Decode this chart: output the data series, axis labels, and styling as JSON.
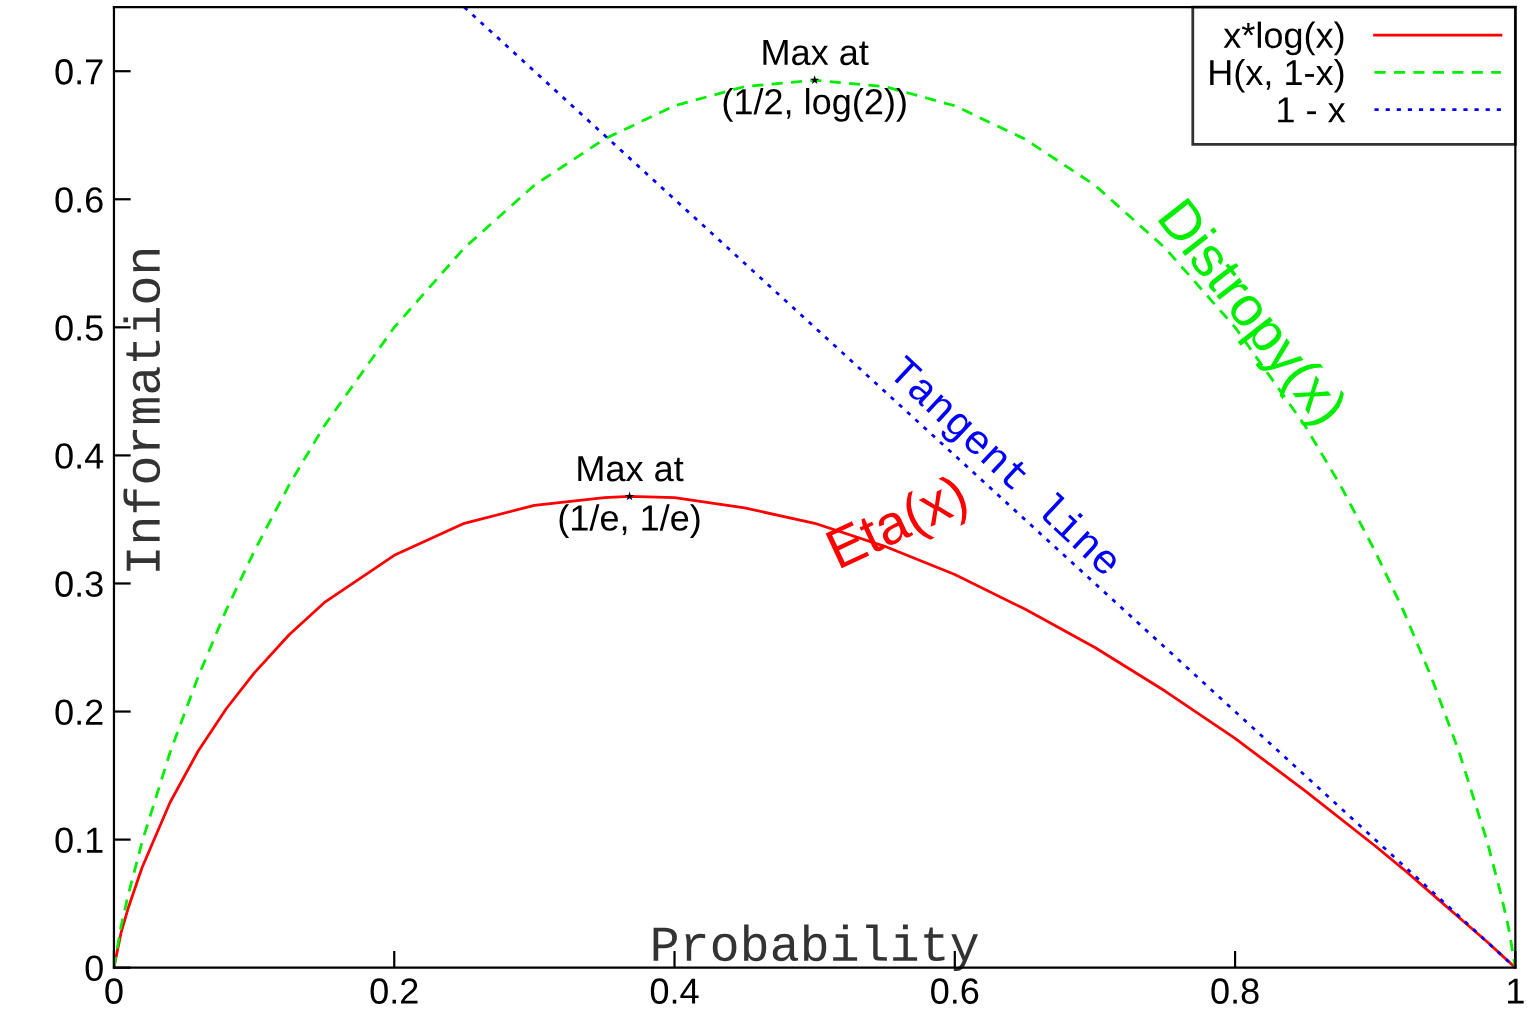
{
  "chart_data": {
    "type": "line",
    "xlabel": "Probability",
    "ylabel": "Information",
    "xlim": [
      0,
      1
    ],
    "ylim": [
      0,
      0.75
    ],
    "xticks": [
      0,
      0.2,
      0.4,
      0.6,
      0.8,
      1
    ],
    "yticks": [
      0,
      0.1,
      0.2,
      0.3,
      0.4,
      0.5,
      0.6,
      0.7
    ],
    "grid": false,
    "legend": "top right",
    "marker": "none",
    "series": [
      {
        "name": "x*log(x)",
        "color": "#ff0000",
        "line_style": "solid",
        "x": [
          0,
          0.005,
          0.01,
          0.02,
          0.04,
          0.06,
          0.08,
          0.1,
          0.125,
          0.15,
          0.2,
          0.25,
          0.3,
          0.35,
          0.3679,
          0.4,
          0.45,
          0.5,
          0.55,
          0.6,
          0.65,
          0.7,
          0.75,
          0.8,
          0.85,
          0.9,
          0.92,
          0.94,
          0.96,
          0.98,
          0.99,
          0.995,
          1
        ],
        "values": [
          0,
          0.027,
          0.046,
          0.078,
          0.129,
          0.169,
          0.202,
          0.23,
          0.26,
          0.285,
          0.322,
          0.347,
          0.361,
          0.367,
          0.368,
          0.367,
          0.359,
          0.347,
          0.329,
          0.307,
          0.28,
          0.25,
          0.216,
          0.179,
          0.138,
          0.095,
          0.077,
          0.058,
          0.039,
          0.02,
          0.01,
          0.005,
          0
        ]
      },
      {
        "name": "H(x, 1-x)",
        "color": "#00ee00",
        "line_style": "dashed",
        "x": [
          0,
          0.005,
          0.01,
          0.02,
          0.04,
          0.06,
          0.08,
          0.1,
          0.125,
          0.15,
          0.2,
          0.25,
          0.3,
          0.35,
          0.4,
          0.45,
          0.5,
          0.55,
          0.6,
          0.65,
          0.7,
          0.75,
          0.8,
          0.85,
          0.875,
          0.9,
          0.92,
          0.94,
          0.96,
          0.98,
          0.99,
          0.995,
          1
        ],
        "values": [
          0,
          0.032,
          0.056,
          0.098,
          0.168,
          0.227,
          0.279,
          0.325,
          0.377,
          0.423,
          0.5,
          0.562,
          0.611,
          0.647,
          0.673,
          0.688,
          0.693,
          0.688,
          0.673,
          0.647,
          0.611,
          0.562,
          0.5,
          0.423,
          0.377,
          0.325,
          0.279,
          0.227,
          0.168,
          0.098,
          0.056,
          0.032,
          0
        ]
      },
      {
        "name": "1 - x",
        "color": "#0000ff",
        "line_style": "dotted",
        "x": [
          0.25,
          1
        ],
        "values": [
          0.75,
          0
        ]
      },
      {
        "type": "scatter",
        "color": "#000000",
        "marker": "star",
        "x": [
          0.3679,
          0.5
        ],
        "values": [
          0.368,
          0.693
        ]
      }
    ],
    "annotations": [
      {
        "text": "Max at\n(1/e, 1/e)",
        "x": 0.3679,
        "y": 0.368
      },
      {
        "text": "Max at\n(1/2, log(2))",
        "x": 0.5,
        "y": 0.693
      },
      "Eta(x)",
      "Distropy(x)",
      "Tangent line"
    ]
  }
}
